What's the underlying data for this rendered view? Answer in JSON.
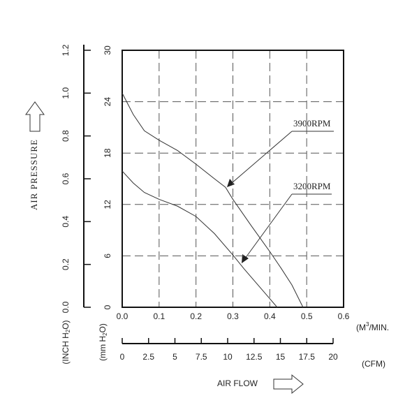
{
  "chart_data": {
    "type": "line",
    "y_title": "AIR PRESSURE",
    "x_title": "AIR FLOW",
    "y2_unit": [
      "(INCH H",
      "2",
      "O)"
    ],
    "y_unit": [
      "(mm H",
      "2",
      "O)"
    ],
    "x_unit": [
      "(M",
      "3",
      "/MIN."
    ],
    "x2_unit": "(CFM)",
    "xlim": [
      0,
      0.6
    ],
    "xticks": [
      {
        "value": 0,
        "label": "0.0"
      },
      0.1,
      0.2,
      0.3,
      0.4,
      0.5,
      0.6
    ],
    "x2lim": [
      0,
      20
    ],
    "x2ticks": [
      0,
      2.5,
      5,
      7.5,
      10,
      12.5,
      15,
      17.5,
      20
    ],
    "ylim": [
      0,
      30
    ],
    "yticks": [
      0,
      6,
      12,
      18,
      24,
      30
    ],
    "y2lim": [
      0,
      1.2
    ],
    "y2ticks": [
      {
        "value": 0,
        "label": "0.0"
      },
      0.2,
      0.4,
      0.6,
      0.8,
      {
        "value": 1,
        "label": "1.0"
      },
      1.2
    ],
    "grid": true,
    "series": [
      {
        "name": "3900RPM",
        "color": "#333333",
        "x": [
          0,
          0.03,
          0.06,
          0.1,
          0.15,
          0.2,
          0.25,
          0.28,
          0.3,
          0.35,
          0.4,
          0.43,
          0.46,
          0.49
        ],
        "values": [
          25,
          22.5,
          20.6,
          19.5,
          18.3,
          16.7,
          15,
          14,
          12.6,
          9.5,
          6.5,
          4.6,
          2.6,
          0
        ]
      },
      {
        "name": "3200RPM",
        "color": "#333333",
        "x": [
          0,
          0.03,
          0.06,
          0.1,
          0.15,
          0.2,
          0.25,
          0.3,
          0.33,
          0.36,
          0.39,
          0.42
        ],
        "values": [
          15.9,
          14.5,
          13.4,
          12.6,
          11.8,
          10.6,
          8.6,
          6.1,
          4.5,
          3,
          1.5,
          0
        ]
      }
    ]
  }
}
